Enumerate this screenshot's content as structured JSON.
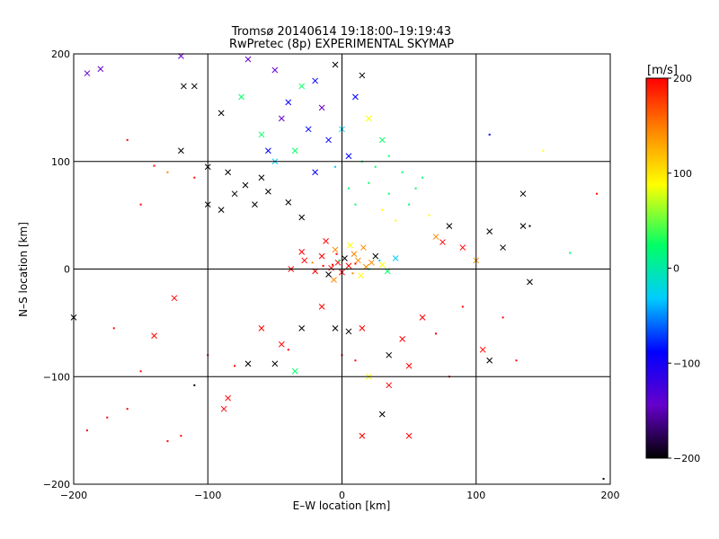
{
  "chart_data": {
    "type": "scatter",
    "title": "Tromsø 20140614 19:18:00–19:19:43",
    "subtitle": "RwPretec (8p) EXPERIMENTAL SKYMAP",
    "xlabel": "E–W location [km]",
    "ylabel": "N–S location [km]",
    "xlim": [
      -200,
      200
    ],
    "ylim": [
      -200,
      200
    ],
    "xticks": [
      -200,
      -100,
      0,
      100,
      200
    ],
    "yticks": [
      -200,
      -100,
      0,
      100,
      200
    ],
    "grid": true,
    "colorbar": {
      "label": "[m/s]",
      "range": [
        -200,
        200
      ],
      "ticks": [
        200,
        100,
        0,
        -100,
        -200
      ],
      "colormap": [
        "#000000",
        "#6600cc",
        "#0000ff",
        "#00ccff",
        "#00ff66",
        "#ffff00",
        "#ff8800",
        "#ff0000"
      ]
    },
    "marker_legend": {
      "x": "cross marker",
      "dot": "small dot marker"
    },
    "points": [
      [
        -3,
        6,
        190,
        "x"
      ],
      [
        5,
        3,
        180,
        "x"
      ],
      [
        -8,
        1,
        200,
        "x"
      ],
      [
        12,
        8,
        170,
        "x"
      ],
      [
        18,
        2,
        150,
        "x"
      ],
      [
        -15,
        12,
        190,
        "x"
      ],
      [
        22,
        6,
        160,
        "x"
      ],
      [
        0,
        -3,
        200,
        "x"
      ],
      [
        -20,
        -2,
        175,
        "x"
      ],
      [
        9,
        14,
        130,
        "x"
      ],
      [
        -5,
        18,
        120,
        "x"
      ],
      [
        30,
        4,
        90,
        "x"
      ],
      [
        -28,
        8,
        180,
        "x"
      ],
      [
        14,
        -6,
        60,
        "x"
      ],
      [
        2,
        10,
        -200,
        "x"
      ],
      [
        -10,
        -5,
        -190,
        "x"
      ],
      [
        25,
        12,
        -180,
        "x"
      ],
      [
        -30,
        16,
        200,
        "x"
      ],
      [
        34,
        -2,
        20,
        "x"
      ],
      [
        6,
        22,
        110,
        "x"
      ],
      [
        -12,
        26,
        190,
        "x"
      ],
      [
        16,
        20,
        140,
        "x"
      ],
      [
        -6,
        -10,
        170,
        "x"
      ],
      [
        40,
        10,
        -20,
        "x"
      ],
      [
        -38,
        0,
        190,
        "x"
      ],
      [
        -2,
        8,
        0,
        "dot"
      ],
      [
        4,
        0,
        20,
        "dot"
      ],
      [
        -7,
        4,
        200,
        "dot"
      ],
      [
        10,
        5,
        180,
        "dot"
      ],
      [
        -14,
        3,
        190,
        "dot"
      ],
      [
        20,
        0,
        10,
        "dot"
      ],
      [
        -22,
        6,
        170,
        "dot"
      ],
      [
        8,
        -4,
        150,
        "dot"
      ],
      [
        28,
        8,
        -10,
        "dot"
      ],
      [
        -4,
        14,
        190,
        "dot"
      ],
      [
        -60,
        85,
        -200,
        "x"
      ],
      [
        -72,
        78,
        -200,
        "x"
      ],
      [
        -65,
        60,
        -190,
        "x"
      ],
      [
        -80,
        70,
        -200,
        "x"
      ],
      [
        -90,
        55,
        -200,
        "x"
      ],
      [
        -55,
        72,
        -200,
        "x"
      ],
      [
        -100,
        95,
        -180,
        "x"
      ],
      [
        -40,
        62,
        -200,
        "x"
      ],
      [
        -85,
        90,
        -200,
        "x"
      ],
      [
        -30,
        48,
        -200,
        "x"
      ],
      [
        -50,
        100,
        -20,
        "x"
      ],
      [
        -35,
        110,
        10,
        "x"
      ],
      [
        -20,
        90,
        -60,
        "x"
      ],
      [
        -10,
        120,
        -70,
        "x"
      ],
      [
        5,
        105,
        -80,
        "x"
      ],
      [
        -25,
        130,
        -60,
        "x"
      ],
      [
        -45,
        140,
        -150,
        "x"
      ],
      [
        -60,
        125,
        40,
        "x"
      ],
      [
        -15,
        150,
        -120,
        "x"
      ],
      [
        10,
        160,
        -100,
        "x"
      ],
      [
        -30,
        170,
        30,
        "x"
      ],
      [
        -50,
        185,
        -130,
        "x"
      ],
      [
        -70,
        195,
        -150,
        "x"
      ],
      [
        -5,
        190,
        -200,
        "x"
      ],
      [
        20,
        140,
        60,
        "x"
      ],
      [
        -40,
        155,
        -60,
        "x"
      ],
      [
        -75,
        160,
        40,
        "x"
      ],
      [
        -55,
        110,
        -70,
        "x"
      ],
      [
        -20,
        175,
        -110,
        "x"
      ],
      [
        0,
        130,
        -40,
        "x"
      ],
      [
        30,
        120,
        50,
        "x"
      ],
      [
        15,
        180,
        -200,
        "x"
      ],
      [
        -90,
        145,
        -200,
        "x"
      ],
      [
        -110,
        170,
        -200,
        "x"
      ],
      [
        -120,
        110,
        -200,
        "x"
      ],
      [
        20,
        80,
        40,
        "dot"
      ],
      [
        35,
        70,
        30,
        "dot"
      ],
      [
        45,
        90,
        20,
        "dot"
      ],
      [
        30,
        55,
        60,
        "dot"
      ],
      [
        55,
        75,
        10,
        "dot"
      ],
      [
        10,
        60,
        50,
        "dot"
      ],
      [
        25,
        95,
        0,
        "dot"
      ],
      [
        40,
        45,
        80,
        "dot"
      ],
      [
        50,
        60,
        30,
        "dot"
      ],
      [
        60,
        85,
        40,
        "dot"
      ],
      [
        15,
        100,
        10,
        "dot"
      ],
      [
        5,
        75,
        30,
        "dot"
      ],
      [
        -5,
        95,
        -40,
        "dot"
      ],
      [
        35,
        105,
        20,
        "dot"
      ],
      [
        65,
        50,
        90,
        "dot"
      ],
      [
        70,
        30,
        140,
        "x"
      ],
      [
        80,
        40,
        -200,
        "x"
      ],
      [
        90,
        20,
        200,
        "x"
      ],
      [
        110,
        35,
        -190,
        "x"
      ],
      [
        120,
        20,
        -200,
        "x"
      ],
      [
        135,
        40,
        -200,
        "x"
      ],
      [
        135,
        70,
        -180,
        "x"
      ],
      [
        140,
        -12,
        -200,
        "x"
      ],
      [
        100,
        8,
        160,
        "x"
      ],
      [
        75,
        25,
        180,
        "x"
      ],
      [
        -180,
        186,
        -140,
        "x"
      ],
      [
        -190,
        182,
        -120,
        "x"
      ],
      [
        -120,
        198,
        -150,
        "x"
      ],
      [
        -118,
        170,
        -200,
        "x"
      ],
      [
        -100,
        60,
        -200,
        "x"
      ],
      [
        -140,
        96,
        200,
        "dot"
      ],
      [
        -160,
        120,
        200,
        "dot"
      ],
      [
        -130,
        90,
        140,
        "dot"
      ],
      [
        -110,
        85,
        190,
        "dot"
      ],
      [
        -150,
        60,
        180,
        "dot"
      ],
      [
        -125,
        -27,
        200,
        "x"
      ],
      [
        -140,
        -62,
        200,
        "x"
      ],
      [
        -85,
        -120,
        200,
        "x"
      ],
      [
        -88,
        -130,
        200,
        "x"
      ],
      [
        -70,
        -88,
        -200,
        "x"
      ],
      [
        -50,
        -88,
        -200,
        "x"
      ],
      [
        -45,
        -70,
        200,
        "x"
      ],
      [
        -30,
        -55,
        -200,
        "x"
      ],
      [
        -60,
        -55,
        200,
        "x"
      ],
      [
        -15,
        -35,
        200,
        "x"
      ],
      [
        -5,
        -55,
        -200,
        "x"
      ],
      [
        5,
        -58,
        -200,
        "x"
      ],
      [
        15,
        -55,
        200,
        "x"
      ],
      [
        35,
        -80,
        -200,
        "x"
      ],
      [
        50,
        -90,
        200,
        "x"
      ],
      [
        60,
        -45,
        200,
        "x"
      ],
      [
        20,
        -100,
        80,
        "x"
      ],
      [
        35,
        -108,
        200,
        "x"
      ],
      [
        -35,
        -95,
        30,
        "x"
      ],
      [
        50,
        -155,
        200,
        "x"
      ],
      [
        15,
        -155,
        200,
        "x"
      ],
      [
        30,
        -135,
        -200,
        "x"
      ],
      [
        105,
        -75,
        200,
        "x"
      ],
      [
        110,
        -85,
        -200,
        "x"
      ],
      [
        45,
        -65,
        200,
        "x"
      ],
      [
        -190,
        -150,
        200,
        "dot"
      ],
      [
        -175,
        -138,
        200,
        "dot"
      ],
      [
        -160,
        -130,
        200,
        "dot"
      ],
      [
        -130,
        -160,
        200,
        "dot"
      ],
      [
        -120,
        -155,
        200,
        "dot"
      ],
      [
        -150,
        -95,
        200,
        "dot"
      ],
      [
        -100,
        -80,
        200,
        "dot"
      ],
      [
        -200,
        -45,
        -200,
        "x"
      ],
      [
        -170,
        -55,
        200,
        "dot"
      ],
      [
        -110,
        -108,
        -200,
        "dot"
      ],
      [
        -80,
        -90,
        200,
        "dot"
      ],
      [
        -40,
        -75,
        200,
        "dot"
      ],
      [
        0,
        -80,
        200,
        "dot"
      ],
      [
        10,
        -85,
        200,
        "dot"
      ],
      [
        70,
        -60,
        200,
        "dot"
      ],
      [
        90,
        -35,
        200,
        "dot"
      ],
      [
        120,
        -45,
        200,
        "dot"
      ],
      [
        130,
        -85,
        200,
        "dot"
      ],
      [
        80,
        -100,
        200,
        "dot"
      ],
      [
        170,
        15,
        20,
        "dot"
      ],
      [
        195,
        -195,
        -200,
        "dot"
      ],
      [
        190,
        70,
        200,
        "dot"
      ],
      [
        150,
        110,
        80,
        "dot"
      ],
      [
        110,
        125,
        -80,
        "dot"
      ],
      [
        140,
        40,
        -200,
        "dot"
      ]
    ]
  }
}
